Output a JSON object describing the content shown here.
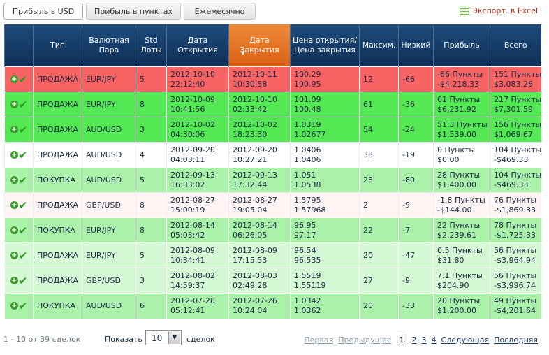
{
  "tabs": [
    {
      "label": "Прибыль в USD",
      "active": true
    },
    {
      "label": "Прибыль в пунктах",
      "active": false
    },
    {
      "label": "Ежемесячно",
      "active": false
    }
  ],
  "export_label": "Экспорт. в Excel",
  "columns": {
    "type": "Тип",
    "pair": "Валютная Пара",
    "lots": "Std Лоты",
    "open_date": "Дата Открытия",
    "close_date": "Дата Закрытия",
    "prices": "Цена открытия/ Цена закрытия",
    "max": "Максим.",
    "low": "Низкий",
    "profit": "Прибыль",
    "total": "Всего"
  },
  "rows": [
    {
      "style": "red",
      "type": "ПРОДАЖА",
      "pair": "EUR/JPY",
      "lots": "5",
      "open_date": "2012-10-10",
      "open_time": "22:12:40",
      "close_date": "2012-10-11",
      "close_time": "10:30:58",
      "open_price": "100.29",
      "close_price": "100.95",
      "max": "12",
      "low": "-66",
      "profit_pts": "-66 Пункты",
      "profit_usd": "-$4,218.33",
      "total_pts": "151 Пункты",
      "total_usd": "$3,083.26"
    },
    {
      "style": "green",
      "type": "ПРОДАЖА",
      "pair": "EUR/JPY",
      "lots": "8",
      "open_date": "2012-10-09",
      "open_time": "10:41:56",
      "close_date": "2012-10-10",
      "close_time": "02:33:42",
      "open_price": "101.09",
      "close_price": "100.48",
      "max": "61",
      "low": "-36",
      "profit_pts": "61 Пункты",
      "profit_usd": "$6,231.92",
      "total_pts": "217 Пункты",
      "total_usd": "$7,301.59"
    },
    {
      "style": "green",
      "type": "ПРОДАЖА",
      "pair": "AUD/USD",
      "lots": "3",
      "open_date": "2012-10-02",
      "open_time": "04:30:06",
      "close_date": "2012-10-02",
      "close_time": "18:23:30",
      "open_price": "1.0319",
      "close_price": "1.02677",
      "max": "54",
      "low": "-24",
      "profit_pts": "51.3 Пункты",
      "profit_usd": "$1,539.00",
      "total_pts": "156 Пункты",
      "total_usd": "$1,069.67"
    },
    {
      "style": "white",
      "type": "ПРОДАЖА",
      "pair": "AUD/USD",
      "lots": "4",
      "open_date": "2012-09-20",
      "open_time": "04:03:11",
      "close_date": "2012-09-20",
      "close_time": "10:27:21",
      "open_price": "1.0406",
      "close_price": "1.0406",
      "max": "38",
      "low": "-19",
      "profit_pts": "0 Пункты",
      "profit_usd": "$0.00",
      "total_pts": "104 Пункты",
      "total_usd": "-$469.33"
    },
    {
      "style": "light",
      "type": "ПОКУПКА",
      "pair": "AUD/USD",
      "lots": "5",
      "open_date": "2012-09-13",
      "open_time": "16:33:02",
      "close_date": "2012-09-13",
      "close_time": "17:32:44",
      "open_price": "1.051",
      "close_price": "1.0538",
      "max": "28",
      "low": "-80",
      "profit_pts": "28 Пункты",
      "profit_usd": "$1,400.00",
      "total_pts": "104 Пункты",
      "total_usd": "-$469.33"
    },
    {
      "style": "pink",
      "type": "ПРОДАЖА",
      "pair": "GBP/USD",
      "lots": "8",
      "open_date": "2012-08-27",
      "open_time": "15:00:19",
      "close_date": "2012-08-27",
      "close_time": "19:05:04",
      "open_price": "1.5795",
      "close_price": "1.57968",
      "max": "2",
      "low": "-9",
      "profit_pts": "-1.8 Пункты",
      "profit_usd": "-$144.00",
      "total_pts": "76 Пункты",
      "total_usd": "-$1,869.33"
    },
    {
      "style": "light",
      "type": "ПОКУПКА",
      "pair": "EUR/JPY",
      "lots": "8",
      "open_date": "2012-08-14",
      "open_time": "05:03:42",
      "close_date": "2012-08-14",
      "close_time": "06:26:05",
      "open_price": "96.95",
      "close_price": "97.17",
      "max": "22",
      "low": "-7",
      "profit_pts": "22 Пункты",
      "profit_usd": "$2,239.61",
      "total_pts": "78 Пункты",
      "total_usd": "-$1,725.33"
    },
    {
      "style": "pale",
      "type": "ПРОДАЖА",
      "pair": "EUR/JPY",
      "lots": "5",
      "open_date": "2012-08-09",
      "open_time": "10:34:41",
      "close_date": "2012-08-09",
      "close_time": "17:15:53",
      "open_price": "96.54",
      "close_price": "96.535",
      "max": "20",
      "low": "-47",
      "profit_pts": "0.5 Пункты",
      "profit_usd": "$31.80",
      "total_pts": "56 Пункты",
      "total_usd": "-$3,964.94"
    },
    {
      "style": "pale",
      "type": "ПРОДАЖА",
      "pair": "GBP/USD",
      "lots": "3",
      "open_date": "2012-08-02",
      "open_time": "14:59:37",
      "close_date": "2012-08-03",
      "close_time": "02:49:28",
      "open_price": "1.5519",
      "close_price": "1.55119",
      "max": "27",
      "low": "-9",
      "profit_pts": "7.1 Пункты",
      "profit_usd": "$204.90",
      "total_pts": "56 Пункты",
      "total_usd": "-$3,996.74"
    },
    {
      "style": "light",
      "type": "ПОКУПКА",
      "pair": "AUD/USD",
      "lots": "6",
      "open_date": "2012-07-26",
      "open_time": "05:12:41",
      "close_date": "2012-07-26",
      "close_time": "10:24:04",
      "open_price": "1.0342",
      "close_price": "1.0362",
      "max": "20",
      "low": "-33",
      "profit_pts": "20 Пункты",
      "profit_usd": "$1,200.00",
      "total_pts": "49 Пункты",
      "total_usd": "-$4,201.64"
    }
  ],
  "footer": {
    "count_text": "1 - 10 от 39 сделок",
    "show_label": "Показать",
    "page_size": "10",
    "rows_label": "сделок",
    "first": "Первая",
    "prev": "Предыдущее",
    "pages": [
      "1",
      "2",
      "3",
      "4"
    ],
    "current_page": "1",
    "next": "Следующая",
    "last": "Последняя"
  },
  "colors": {
    "header": "#0f3057",
    "header_sorted": "#e06a1a",
    "loss_row": "#f86363",
    "win_row": "#55e855",
    "light_win_row": "#aaf2aa",
    "pale_win_row": "#d5f8d5"
  },
  "icons": {
    "row_add": "plus-circle-icon",
    "row_status": "checkmark-icon",
    "export": "excel-icon"
  }
}
